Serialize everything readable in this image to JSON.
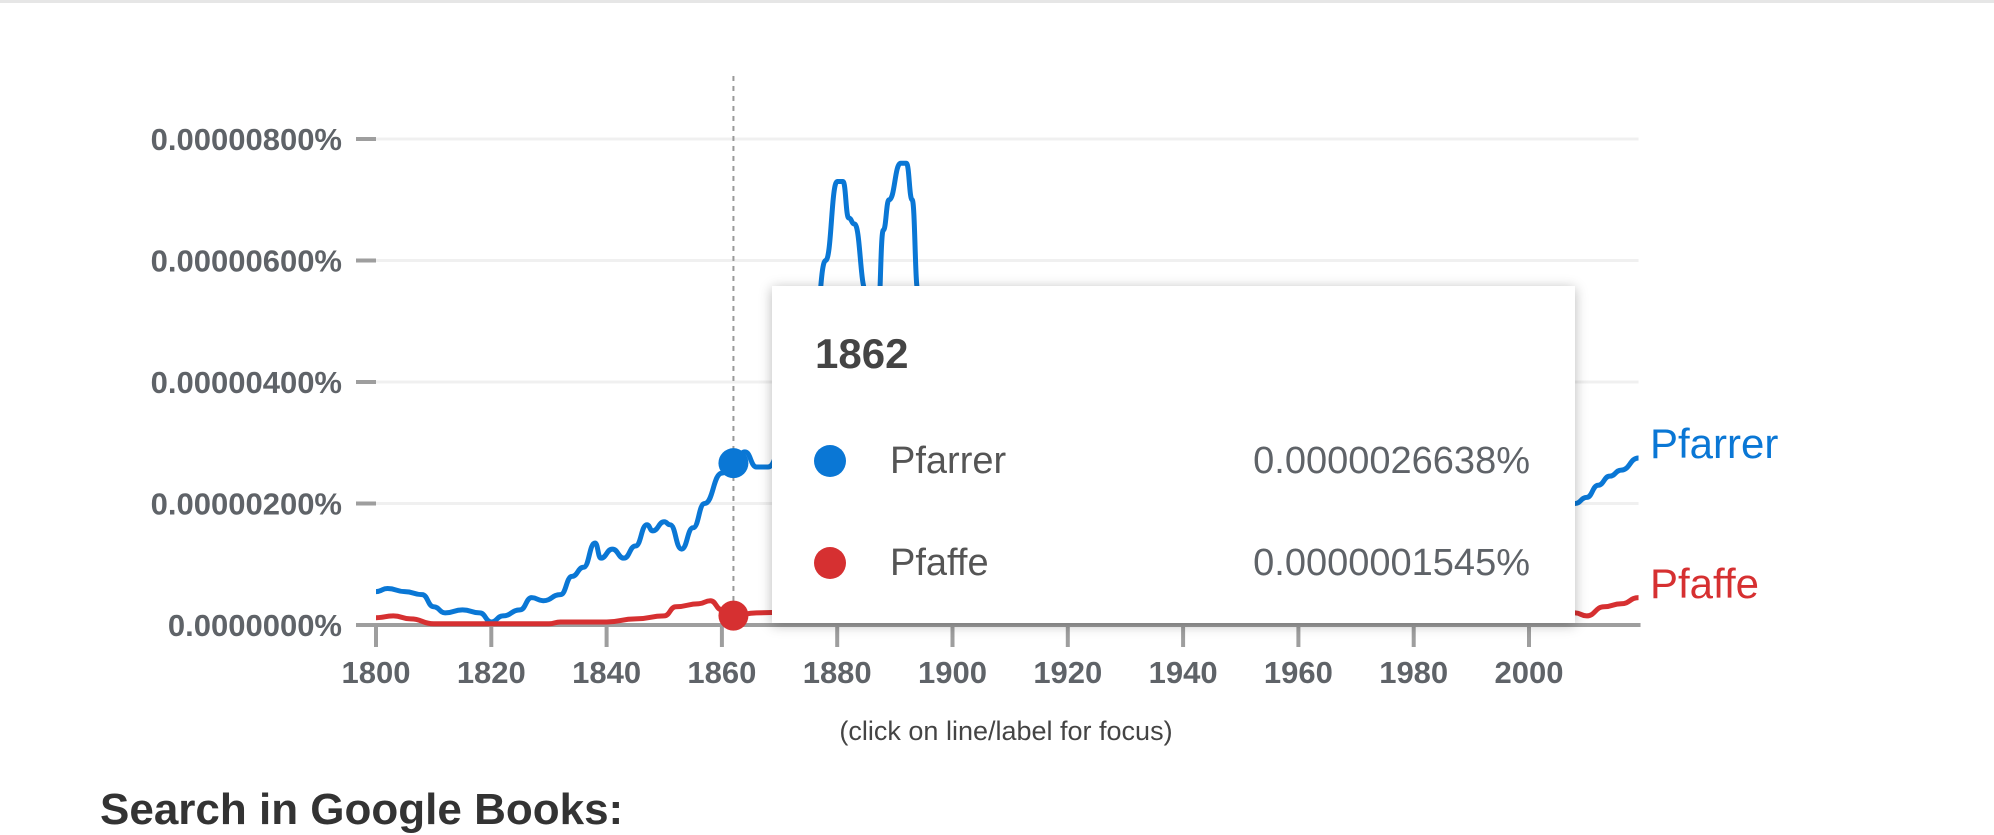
{
  "chart_data": {
    "type": "line",
    "xlabel": "(click on line/label for focus)",
    "ylabel": "",
    "xlim": [
      1800,
      2019
    ],
    "ylim": [
      0,
      8.5e-06
    ],
    "x_ticks": [
      1800,
      1820,
      1840,
      1860,
      1880,
      1900,
      1920,
      1940,
      1960,
      1980,
      2000
    ],
    "x_tick_labels": [
      "1800",
      "1820",
      "1840",
      "1860",
      "1880",
      "1900",
      "1920",
      "1940",
      "1960",
      "1980",
      "2000"
    ],
    "y_ticks": [
      0,
      2e-06,
      4e-06,
      6e-06,
      8e-06
    ],
    "y_tick_labels": [
      "0.0000000%",
      "0.00000200%",
      "0.00000400%",
      "0.00000600%",
      "0.00000800%"
    ],
    "grid": true,
    "legend": "end-of-line labels",
    "series": [
      {
        "name": "Pfarrer",
        "color": "#0a77d5",
        "points": [
          [
            1800,
            5.5e-07
          ],
          [
            1802,
            6e-07
          ],
          [
            1805,
            5.5e-07
          ],
          [
            1808,
            5e-07
          ],
          [
            1810,
            3e-07
          ],
          [
            1812,
            2e-07
          ],
          [
            1815,
            2.5e-07
          ],
          [
            1818,
            2e-07
          ],
          [
            1820,
            5e-08
          ],
          [
            1822,
            1.5e-07
          ],
          [
            1825,
            2.5e-07
          ],
          [
            1827,
            4.5e-07
          ],
          [
            1829,
            4e-07
          ],
          [
            1832,
            5e-07
          ],
          [
            1834,
            8e-07
          ],
          [
            1836,
            9.5e-07
          ],
          [
            1838,
            1.35e-06
          ],
          [
            1839,
            1.1e-06
          ],
          [
            1841,
            1.25e-06
          ],
          [
            1843,
            1.1e-06
          ],
          [
            1845,
            1.3e-06
          ],
          [
            1847,
            1.65e-06
          ],
          [
            1848,
            1.55e-06
          ],
          [
            1850,
            1.7e-06
          ],
          [
            1851,
            1.65e-06
          ],
          [
            1853,
            1.25e-06
          ],
          [
            1855,
            1.6e-06
          ],
          [
            1857,
            2e-06
          ],
          [
            1860,
            2.5e-06
          ],
          [
            1862,
            2.6638e-06
          ],
          [
            1864,
            2.85e-06
          ],
          [
            1866,
            2.6e-06
          ],
          [
            1868,
            2.6e-06
          ],
          [
            1872,
            3.5e-06
          ],
          [
            1876,
            4.8e-06
          ],
          [
            1878,
            6e-06
          ],
          [
            1880,
            7.3e-06
          ],
          [
            1881,
            7.3e-06
          ],
          [
            1882,
            6.7e-06
          ],
          [
            1883,
            6.6e-06
          ],
          [
            1885,
            5.5e-06
          ],
          [
            1886,
            4.8e-06
          ],
          [
            1887,
            5e-06
          ],
          [
            1888,
            6.5e-06
          ],
          [
            1889,
            7e-06
          ],
          [
            1891,
            7.6e-06
          ],
          [
            1892,
            7.6e-06
          ],
          [
            1893,
            7e-06
          ],
          [
            1894,
            5.5e-06
          ],
          [
            1896,
            4.5e-06
          ],
          [
            1900,
            3.5e-06
          ],
          [
            1920,
            2.5e-06
          ],
          [
            1950,
            1.8e-06
          ],
          [
            1980,
            1.6e-06
          ],
          [
            2000,
            1.8e-06
          ],
          [
            2005,
            1.9e-06
          ],
          [
            2008,
            2e-06
          ],
          [
            2010,
            2.1e-06
          ],
          [
            2012,
            2.3e-06
          ],
          [
            2014,
            2.45e-06
          ],
          [
            2016,
            2.55e-06
          ],
          [
            2019,
            2.75e-06
          ]
        ]
      },
      {
        "name": "Pfaffe",
        "color": "#d63031",
        "points": [
          [
            1800,
            1.2e-07
          ],
          [
            1803,
            1.5e-07
          ],
          [
            1806,
            1e-07
          ],
          [
            1810,
            2e-08
          ],
          [
            1815,
            2e-08
          ],
          [
            1820,
            2e-08
          ],
          [
            1825,
            2e-08
          ],
          [
            1830,
            2e-08
          ],
          [
            1832,
            5e-08
          ],
          [
            1840,
            5e-08
          ],
          [
            1845,
            1e-07
          ],
          [
            1850,
            1.5e-07
          ],
          [
            1852,
            3e-07
          ],
          [
            1856,
            3.5e-07
          ],
          [
            1858,
            4e-07
          ],
          [
            1860,
            2.5e-07
          ],
          [
            1862,
            1.545e-07
          ],
          [
            1866,
            2e-07
          ],
          [
            1880,
            3e-07
          ],
          [
            1900,
            3e-07
          ],
          [
            1950,
            2.5e-07
          ],
          [
            2000,
            2.5e-07
          ],
          [
            2008,
            2e-07
          ],
          [
            2010,
            1.5e-07
          ],
          [
            2013,
            3e-07
          ],
          [
            2016,
            3.5e-07
          ],
          [
            2019,
            4.5e-07
          ]
        ]
      }
    ],
    "hover": {
      "year": "1862",
      "rows": [
        {
          "name": "Pfarrer",
          "value": "0.0000026638%",
          "color": "#0a77d5"
        },
        {
          "name": "Pfaffe",
          "value": "0.0000001545%",
          "color": "#d63031"
        }
      ]
    }
  },
  "end_labels": {
    "pfarrer": "Pfarrer",
    "pfaffe": "Pfaffe"
  },
  "below": {
    "books_heading": "Search in Google Books:"
  }
}
